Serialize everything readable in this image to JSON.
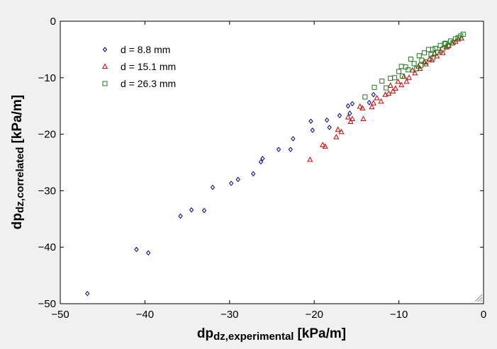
{
  "chart_data": {
    "type": "scatter",
    "title": "",
    "xlabel_main": "dp",
    "xlabel_sub": "dz,experimental",
    "xlabel_unit": "[kPa/m]",
    "ylabel_main": "dp",
    "ylabel_sub": "dz,correlated",
    "ylabel_unit": "[kPa/m]",
    "xlim": [
      -50,
      0
    ],
    "ylim": [
      -50,
      0
    ],
    "xticks": [
      -50,
      -40,
      -30,
      -20,
      -10,
      0
    ],
    "yticks": [
      -50,
      -40,
      -30,
      -20,
      -10,
      0
    ],
    "grid": false,
    "legend_position": "top-left",
    "series": [
      {
        "name": "d = 8.8 mm",
        "marker": "diamond",
        "color": "#00008b",
        "points": [
          [
            -46.8,
            -48.2
          ],
          [
            -41.0,
            -40.4
          ],
          [
            -39.6,
            -41.0
          ],
          [
            -35.8,
            -34.5
          ],
          [
            -34.5,
            -33.4
          ],
          [
            -33.0,
            -33.5
          ],
          [
            -32.0,
            -29.4
          ],
          [
            -29.8,
            -28.7
          ],
          [
            -29.0,
            -28.0
          ],
          [
            -27.2,
            -27.0
          ],
          [
            -26.3,
            -24.9
          ],
          [
            -26.1,
            -24.3
          ],
          [
            -24.2,
            -22.7
          ],
          [
            -22.8,
            -22.7
          ],
          [
            -22.5,
            -20.8
          ],
          [
            -20.4,
            -17.7
          ],
          [
            -20.2,
            -19.3
          ],
          [
            -18.5,
            -17.5
          ],
          [
            -18.2,
            -18.8
          ],
          [
            -17.0,
            -16.7
          ],
          [
            -16.0,
            -15.0
          ],
          [
            -15.8,
            -16.3
          ],
          [
            -15.5,
            -14.6
          ],
          [
            -13.5,
            -14.4
          ],
          [
            -13.0,
            -13.0
          ]
        ]
      },
      {
        "name": "d = 15.1 mm",
        "marker": "triangle",
        "color": "#cc0000",
        "points": [
          [
            -20.5,
            -24.5
          ],
          [
            -19.0,
            -21.9
          ],
          [
            -18.7,
            -22.2
          ],
          [
            -17.4,
            -20.5
          ],
          [
            -17.2,
            -19.2
          ],
          [
            -16.8,
            -19.6
          ],
          [
            -16.0,
            -17.0
          ],
          [
            -15.7,
            -17.8
          ],
          [
            -15.5,
            -17.3
          ],
          [
            -14.6,
            -15.1
          ],
          [
            -14.3,
            -15.4
          ],
          [
            -14.2,
            -17.3
          ],
          [
            -13.2,
            -15.2
          ],
          [
            -13.0,
            -14.5
          ],
          [
            -12.6,
            -13.6
          ],
          [
            -12.1,
            -14.2
          ],
          [
            -11.6,
            -13.0
          ],
          [
            -11.2,
            -12.8
          ],
          [
            -11.0,
            -11.4
          ],
          [
            -10.7,
            -12.4
          ],
          [
            -10.4,
            -11.9
          ],
          [
            -10.1,
            -10.7
          ],
          [
            -9.7,
            -11.3
          ],
          [
            -9.4,
            -9.8
          ],
          [
            -9.1,
            -10.7
          ],
          [
            -8.8,
            -10.0
          ],
          [
            -8.4,
            -8.7
          ],
          [
            -8.1,
            -9.2
          ],
          [
            -7.7,
            -8.0
          ],
          [
            -7.5,
            -8.4
          ],
          [
            -7.0,
            -7.2
          ],
          [
            -6.8,
            -7.6
          ],
          [
            -6.4,
            -6.7
          ],
          [
            -6.1,
            -6.9
          ],
          [
            -5.8,
            -5.7
          ],
          [
            -5.5,
            -6.2
          ],
          [
            -5.1,
            -5.3
          ],
          [
            -4.8,
            -5.6
          ],
          [
            -4.4,
            -4.6
          ],
          [
            -4.1,
            -4.3
          ],
          [
            -3.7,
            -3.9
          ],
          [
            -3.3,
            -3.6
          ],
          [
            -3.0,
            -3.2
          ],
          [
            -2.6,
            -3.0
          ]
        ]
      },
      {
        "name": "d = 26.3 mm",
        "marker": "square",
        "color": "#1a7a1a",
        "points": [
          [
            -14.0,
            -13.4
          ],
          [
            -12.9,
            -11.7
          ],
          [
            -12.0,
            -10.6
          ],
          [
            -11.5,
            -11.8
          ],
          [
            -11.0,
            -10.1
          ],
          [
            -10.5,
            -10.0
          ],
          [
            -10.0,
            -8.9
          ],
          [
            -9.6,
            -9.7
          ],
          [
            -9.2,
            -8.1
          ],
          [
            -8.9,
            -8.6
          ],
          [
            -8.6,
            -6.7
          ],
          [
            -8.2,
            -7.5
          ],
          [
            -7.9,
            -8.4
          ],
          [
            -7.6,
            -6.1
          ],
          [
            -7.3,
            -6.9
          ],
          [
            -7.0,
            -5.6
          ],
          [
            -6.8,
            -7.2
          ],
          [
            -6.5,
            -5.0
          ],
          [
            -6.2,
            -5.9
          ],
          [
            -6.0,
            -6.5
          ],
          [
            -5.7,
            -4.8
          ],
          [
            -5.4,
            -5.5
          ],
          [
            -5.1,
            -4.3
          ],
          [
            -4.8,
            -4.9
          ],
          [
            -4.5,
            -3.9
          ],
          [
            -4.2,
            -4.4
          ],
          [
            -3.9,
            -3.5
          ],
          [
            -3.6,
            -3.8
          ],
          [
            -3.3,
            -3.1
          ],
          [
            -3.0,
            -2.9
          ],
          [
            -2.7,
            -2.6
          ],
          [
            -2.4,
            -2.3
          ],
          [
            -9.7,
            -8.0
          ],
          [
            -7.4,
            -7.8
          ],
          [
            -6.0,
            -5.0
          ],
          [
            -4.6,
            -4.0
          ]
        ]
      }
    ]
  }
}
